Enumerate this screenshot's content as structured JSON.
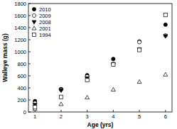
{
  "chart_data": {
    "type": "scatter",
    "x_label": "Age (yrs)",
    "y_label": "Walleye mass (g)",
    "x": [
      1,
      2,
      3,
      4,
      5,
      6
    ],
    "series": [
      {
        "name": "2010",
        "color": "#000000",
        "marker": "circle",
        "values": [
          180,
          380,
          610,
          880,
          1170,
          1450
        ]
      },
      {
        "name": "2009",
        "color": "#000000",
        "marker": "circle-open",
        "values": [
          150,
          370,
          590,
          800,
          1160,
          1270
        ]
      },
      {
        "name": "2008",
        "color": "#000000",
        "marker": "triangle-down",
        "values": [
          120,
          360,
          560,
          790,
          1040,
          1260
        ]
      },
      {
        "name": "2001",
        "color": "#000000",
        "marker": "triangle-open",
        "values": [
          50,
          130,
          240,
          370,
          500,
          620
        ]
      },
      {
        "name": "1994",
        "color": "#000000",
        "marker": "square-open",
        "values": [
          80,
          250,
          530,
          790,
          1030,
          1610
        ]
      }
    ],
    "xlim": [
      0.75,
      6.25
    ],
    "xticks": [
      1,
      2,
      3,
      4,
      5,
      6
    ],
    "ylim": [
      0,
      1800
    ],
    "yticks": [
      0,
      200,
      400,
      600,
      800,
      1000,
      1200,
      1400,
      1600,
      1800
    ],
    "legend": "upper-left",
    "grid": false
  }
}
